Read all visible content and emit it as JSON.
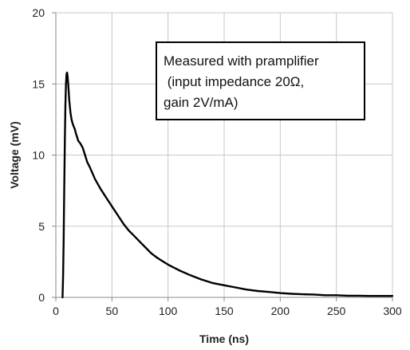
{
  "chart_data": {
    "type": "line",
    "title": "",
    "xlabel": "Time (ns)",
    "ylabel": "Voltage (mV)",
    "xlim": [
      0,
      300
    ],
    "ylim": [
      0,
      20
    ],
    "xticks": [
      0,
      50,
      100,
      150,
      200,
      250,
      300
    ],
    "yticks": [
      0,
      5,
      10,
      15,
      20
    ],
    "grid": true,
    "legend": "none",
    "line_color": "#000000",
    "annotation": {
      "lines": [
        "Measured with pramplifier",
        " (input impedance 20Ω,",
        "gain 2V/mA)"
      ],
      "placement": "top-right"
    },
    "series": [
      {
        "x": [
          6,
          6.5,
          7,
          7.5,
          8,
          8.5,
          9,
          9.5,
          10,
          10.5,
          11,
          12,
          13,
          14,
          15,
          16,
          17,
          18,
          20,
          22,
          24,
          26,
          28,
          30,
          35,
          40,
          45,
          50,
          55,
          60,
          65,
          70,
          75,
          80,
          85,
          90,
          95,
          100,
          110,
          120,
          130,
          140,
          150,
          160,
          170,
          180,
          190,
          200,
          210,
          220,
          230,
          240,
          250,
          260,
          270,
          280,
          290,
          300
        ],
        "y": [
          0.0,
          1.5,
          4.0,
          7.5,
          11.0,
          13.5,
          15.0,
          15.7,
          15.8,
          15.5,
          15.0,
          13.8,
          13.0,
          12.5,
          12.2,
          12.0,
          11.8,
          11.5,
          11.0,
          10.8,
          10.5,
          10.0,
          9.5,
          9.2,
          8.3,
          7.6,
          7.0,
          6.4,
          5.8,
          5.2,
          4.7,
          4.3,
          3.9,
          3.5,
          3.1,
          2.8,
          2.55,
          2.3,
          1.9,
          1.55,
          1.25,
          1.0,
          0.85,
          0.7,
          0.55,
          0.45,
          0.38,
          0.3,
          0.25,
          0.22,
          0.2,
          0.15,
          0.15,
          0.12,
          0.12,
          0.1,
          0.1,
          0.1
        ]
      }
    ]
  }
}
